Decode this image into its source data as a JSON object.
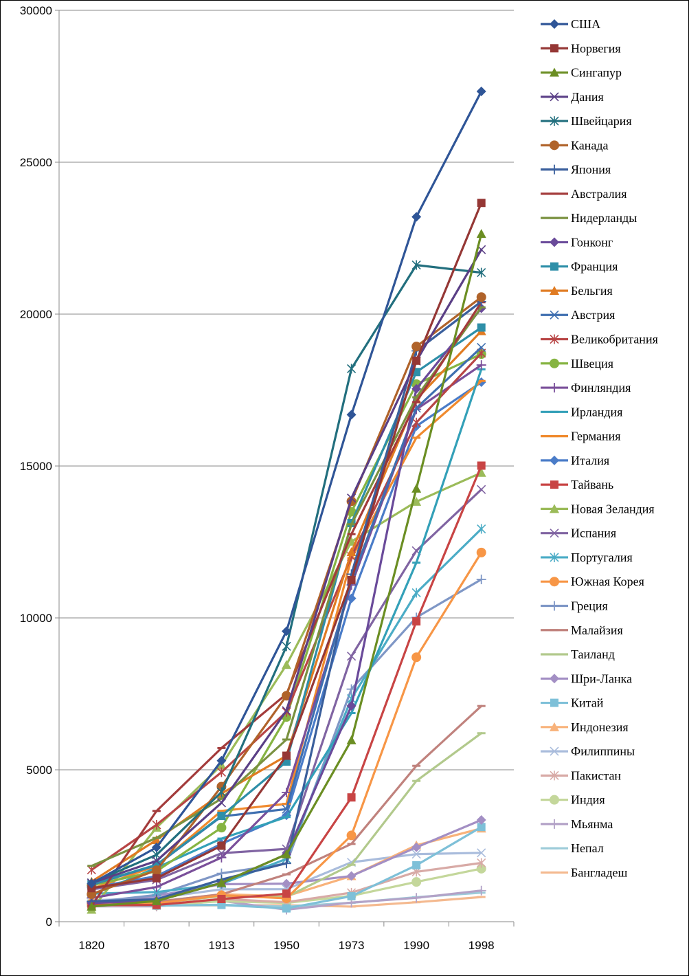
{
  "chart_data": {
    "type": "line",
    "title": "",
    "xlabel": "",
    "ylabel": "",
    "ylim": [
      0,
      30000
    ],
    "yticks": [
      0,
      5000,
      10000,
      15000,
      20000,
      25000,
      30000
    ],
    "categories": [
      "1820",
      "1870",
      "1913",
      "1950",
      "1973",
      "1990",
      "1998"
    ],
    "grid": true,
    "legend_position": "right",
    "series": [
      {
        "name": "США",
        "color": "#2f5597",
        "marker": "diamond",
        "values": [
          1257,
          2445,
          5301,
          9561,
          16689,
          23201,
          27331
        ]
      },
      {
        "name": "Норвегия",
        "color": "#953735",
        "marker": "square",
        "values": [
          1104,
          1432,
          2501,
          5463,
          11246,
          18466,
          23660
        ]
      },
      {
        "name": "Сингапур",
        "color": "#6b8e23",
        "marker": "triangle",
        "values": [
          500,
          682,
          1279,
          2219,
          5977,
          14258,
          22643
        ]
      },
      {
        "name": "Дания",
        "color": "#5a3f86",
        "marker": "x",
        "values": [
          1274,
          2003,
          3912,
          6946,
          13945,
          18452,
          22123
        ]
      },
      {
        "name": "Швейцария",
        "color": "#226f7e",
        "marker": "star",
        "values": [
          1280,
          2202,
          4266,
          9064,
          18204,
          21616,
          21367
        ]
      },
      {
        "name": "Канада",
        "color": "#b0632a",
        "marker": "circle",
        "values": [
          904,
          1695,
          4447,
          7437,
          13838,
          18933,
          20559
        ]
      },
      {
        "name": "Япония",
        "color": "#3a5f9c",
        "marker": "plus",
        "values": [
          669,
          737,
          1387,
          1926,
          11439,
          18789,
          20413
        ]
      },
      {
        "name": "Австралия",
        "color": "#a33b3b",
        "marker": "dash",
        "values": [
          518,
          3645,
          5715,
          7493,
          12759,
          17106,
          20390
        ]
      },
      {
        "name": "Нидерланды",
        "color": "#7a9140",
        "marker": "dash",
        "values": [
          1838,
          2757,
          4049,
          5996,
          13082,
          17262,
          20224
        ]
      },
      {
        "name": "Гонконг",
        "color": "#6a4a9a",
        "marker": "diamond",
        "values": [
          615,
          683,
          1279,
          2218,
          7104,
          17541,
          20193
        ]
      },
      {
        "name": "Франция",
        "color": "#2e8fa8",
        "marker": "square",
        "values": [
          1230,
          1876,
          3485,
          5270,
          13123,
          18093,
          19558
        ]
      },
      {
        "name": "Бельгия",
        "color": "#e07b22",
        "marker": "triangle",
        "values": [
          1319,
          2692,
          4220,
          5462,
          12170,
          17197,
          19442
        ]
      },
      {
        "name": "Австрия",
        "color": "#3f6fb0",
        "marker": "x",
        "values": [
          1218,
          1863,
          3465,
          3706,
          11235,
          16905,
          18905
        ]
      },
      {
        "name": "Великобритания",
        "color": "#b84545",
        "marker": "star",
        "values": [
          1707,
          3191,
          4921,
          6907,
          12022,
          16430,
          18714
        ]
      },
      {
        "name": "Швеция",
        "color": "#86b442",
        "marker": "circle",
        "values": [
          1198,
          1664,
          3096,
          6738,
          13493,
          17695,
          18685
        ]
      },
      {
        "name": "Финляндия",
        "color": "#7a4f9a",
        "marker": "plus",
        "values": [
          781,
          1140,
          2111,
          4253,
          11085,
          16866,
          18324
        ]
      },
      {
        "name": "Ирландия",
        "color": "#33a0b8",
        "marker": "dash",
        "values": [
          877,
          1775,
          2736,
          3446,
          6867,
          11818,
          18183
        ]
      },
      {
        "name": "Германия",
        "color": "#f08a2e",
        "marker": "dash",
        "values": [
          1077,
          1839,
          3648,
          3881,
          11966,
          15929,
          17799
        ]
      },
      {
        "name": "Италия",
        "color": "#4a7cc8",
        "marker": "diamond",
        "values": [
          1117,
          1499,
          2564,
          3502,
          10643,
          16313,
          17759
        ]
      },
      {
        "name": "Тайвань",
        "color": "#c84444",
        "marker": "square",
        "values": [
          550,
          550,
          747,
          924,
          4091,
          9886,
          15012
        ]
      },
      {
        "name": "Новая Зеландия",
        "color": "#9bbb59",
        "marker": "triangle",
        "values": [
          400,
          3100,
          5152,
          8456,
          12513,
          13825,
          14779
        ]
      },
      {
        "name": "Испания",
        "color": "#8064a2",
        "marker": "x",
        "values": [
          1063,
          1376,
          2255,
          2397,
          8739,
          12210,
          14227
        ]
      },
      {
        "name": "Португалия",
        "color": "#4bacc6",
        "marker": "star",
        "values": [
          923,
          975,
          1244,
          2069,
          7343,
          10826,
          12929
        ]
      },
      {
        "name": "Южная Корея",
        "color": "#f79646",
        "marker": "circle",
        "values": [
          600,
          604,
          869,
          770,
          2841,
          8704,
          12152
        ]
      },
      {
        "name": "Греция",
        "color": "#7f97c6",
        "marker": "plus",
        "values": [
          641,
          880,
          1592,
          1915,
          7655,
          10015,
          11268
        ]
      },
      {
        "name": "Малайзия",
        "color": "#c0827d",
        "marker": "dash",
        "values": [
          603,
          663,
          900,
          1559,
          2560,
          5131,
          7100
        ]
      },
      {
        "name": "Таиланд",
        "color": "#b2c98c",
        "marker": "dash",
        "values": [
          570,
          608,
          841,
          817,
          1874,
          4633,
          6205
        ]
      },
      {
        "name": "Шри-Ланка",
        "color": "#a38fc4",
        "marker": "diamond",
        "values": [
          550,
          851,
          1234,
          1253,
          1504,
          2448,
          3349
        ]
      },
      {
        "name": "Китай",
        "color": "#7ec0d8",
        "marker": "square",
        "values": [
          600,
          530,
          552,
          439,
          839,
          1858,
          3117
        ]
      },
      {
        "name": "Индонезия",
        "color": "#f8b27a",
        "marker": "triangle",
        "values": [
          612,
          654,
          904,
          840,
          1504,
          2516,
          3070
        ]
      },
      {
        "name": "Филиппины",
        "color": "#a9bcdc",
        "marker": "x",
        "values": [
          704,
          776,
          1066,
          1070,
          1956,
          2224,
          2268
        ]
      },
      {
        "name": "Пакистан",
        "color": "#d8aaa6",
        "marker": "star",
        "values": [
          533,
          533,
          748,
          643,
          954,
          1642,
          1935
        ]
      },
      {
        "name": "Индия",
        "color": "#c4d79b",
        "marker": "circle",
        "values": [
          533,
          533,
          673,
          619,
          853,
          1309,
          1746
        ]
      },
      {
        "name": "Мьянма",
        "color": "#b3a2c7",
        "marker": "plus",
        "values": [
          504,
          504,
          685,
          396,
          628,
          785,
          1024
        ]
      },
      {
        "name": "Непал",
        "color": "#9ccbd9",
        "marker": "dash",
        "values": [
          531,
          531,
          559,
          496,
          622,
          808,
          954
        ]
      },
      {
        "name": "Бангладеш",
        "color": "#f4b98f",
        "marker": "dash",
        "values": [
          540,
          540,
          540,
          540,
          497,
          640,
          813
        ]
      }
    ]
  }
}
